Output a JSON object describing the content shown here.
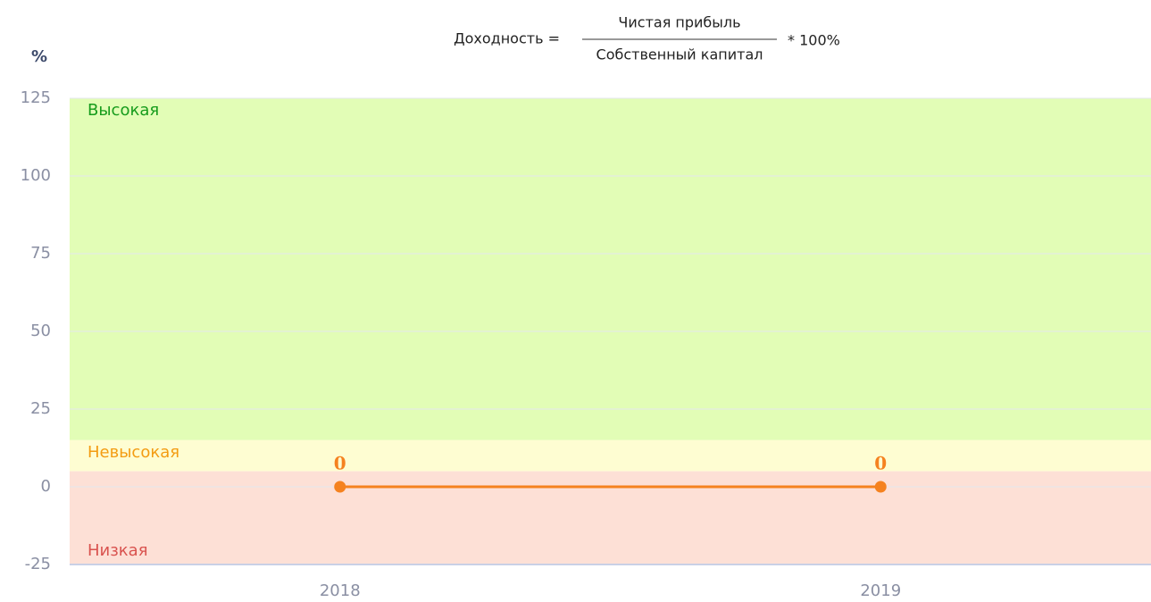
{
  "chart_data": {
    "type": "line",
    "formula": {
      "left": "Доходность =",
      "numerator": "Чистая прибыль",
      "denominator": "Собственный капитал",
      "right": "* 100%"
    },
    "ylabel": "%",
    "categories": [
      "2018",
      "2019"
    ],
    "series": [
      {
        "name": "Доходность",
        "color": "#f5821f",
        "values": [
          0,
          0
        ]
      }
    ],
    "ylim": [
      -25,
      125
    ],
    "yticks": [
      -25,
      0,
      25,
      50,
      75,
      100,
      125
    ],
    "grid": true,
    "bands": [
      {
        "label": "Высокая",
        "from": 15,
        "to": 125,
        "color": "#e2fdb6",
        "text_color": "#169c1c"
      },
      {
        "label": "Невысокая",
        "from": 5,
        "to": 15,
        "color": "#fefdd2",
        "text_color": "#f39c12"
      },
      {
        "label": "Низкая",
        "from": -25,
        "to": 5,
        "color": "#fde0d6",
        "text_color": "#d9534f"
      }
    ]
  }
}
